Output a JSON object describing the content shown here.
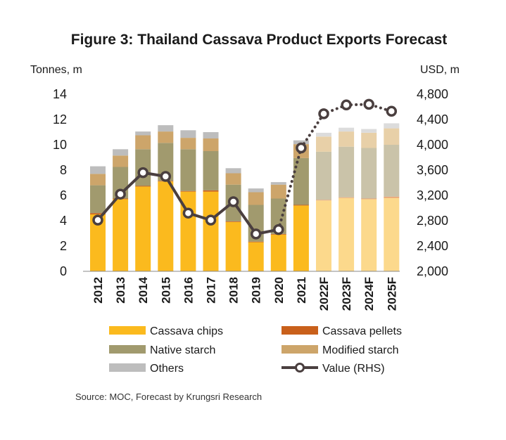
{
  "chart_data": {
    "type": "bar",
    "title": "Figure 3: Thailand Cassava Product Exports Forecast",
    "ylabel": "Tonnes, m",
    "y2label": "USD, m",
    "ylim": [
      0,
      14
    ],
    "y2lim": [
      2000,
      4800
    ],
    "yticks": [
      "0",
      "2",
      "4",
      "6",
      "8",
      "10",
      "12",
      "14"
    ],
    "y2ticks": [
      "2,000",
      "2,400",
      "2,800",
      "3,200",
      "3,600",
      "4,000",
      "4,400",
      "4,800"
    ],
    "categories": [
      "2012",
      "2013",
      "2014",
      "2015",
      "2016",
      "2017",
      "2018",
      "2019",
      "2020",
      "2021",
      "2022F",
      "2023F",
      "2024F",
      "2025F"
    ],
    "forecast_start_index": 10,
    "series": [
      {
        "name": "Cassava chips",
        "color": "#FBBA1E",
        "forecast_color": "#FCD98C",
        "values": [
          4.5,
          5.7,
          6.7,
          7.1,
          6.3,
          6.3,
          3.9,
          2.3,
          2.9,
          5.2,
          5.6,
          5.8,
          5.7,
          5.8
        ]
      },
      {
        "name": "Cassava pellets",
        "color": "#C9601B",
        "forecast_color": "#E8A072",
        "values": [
          0.1,
          0.05,
          0.05,
          0.05,
          0.05,
          0.1,
          0.05,
          0.05,
          0.05,
          0.05,
          0.05,
          0.05,
          0.05,
          0.1
        ]
      },
      {
        "name": "Native starch",
        "color": "#A19A6E",
        "forecast_color": "#CAC3A9",
        "values": [
          2.2,
          2.5,
          2.9,
          3.0,
          3.3,
          3.1,
          2.9,
          2.9,
          2.8,
          3.7,
          3.8,
          4.0,
          4.0,
          4.1
        ]
      },
      {
        "name": "Modified starch",
        "color": "#CDA56A",
        "forecast_color": "#E8D0A8",
        "values": [
          0.9,
          0.9,
          1.1,
          0.9,
          0.9,
          1.0,
          0.9,
          1.0,
          1.1,
          1.1,
          1.2,
          1.2,
          1.2,
          1.3
        ]
      },
      {
        "name": "Others",
        "color": "#BDBDBD",
        "forecast_color": "#DCDCDC",
        "values": [
          0.6,
          0.5,
          0.3,
          0.5,
          0.6,
          0.5,
          0.4,
          0.3,
          0.2,
          0.3,
          0.3,
          0.3,
          0.3,
          0.4
        ]
      }
    ],
    "line": {
      "name": "Value (RHS)",
      "color": "#4A3F3F",
      "values": [
        2810,
        3220,
        3560,
        3500,
        2920,
        2810,
        3100,
        2590,
        2660,
        3950,
        4490,
        4630,
        4640,
        4530
      ]
    },
    "legend_position": "bottom",
    "grid": false
  },
  "source": "Source:  MOC, Forecast by Krungsri Research"
}
